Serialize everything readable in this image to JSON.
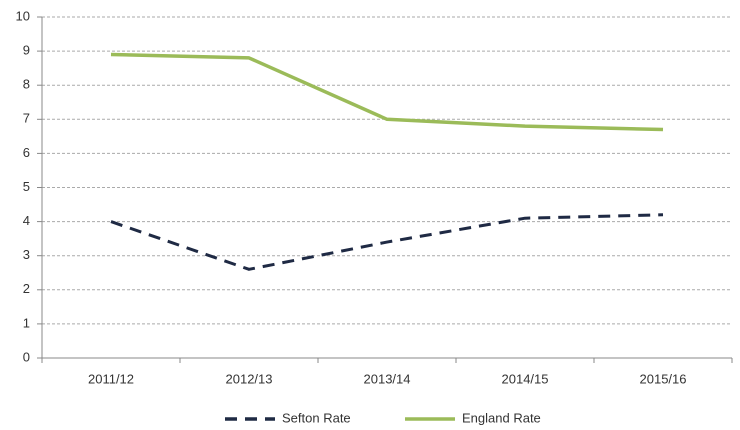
{
  "chart_data": {
    "type": "line",
    "categories": [
      "2011/12",
      "2012/13",
      "2013/14",
      "2014/15",
      "2015/16"
    ],
    "series": [
      {
        "name": "Sefton Rate",
        "color": "#1f2a44",
        "dashed": true,
        "values": [
          4.0,
          2.6,
          3.4,
          4.1,
          4.2
        ]
      },
      {
        "name": "England Rate",
        "color": "#9bbb59",
        "dashed": false,
        "values": [
          8.9,
          8.8,
          7.0,
          6.8,
          6.7
        ]
      }
    ],
    "ylim": [
      0,
      10
    ],
    "yticks": [
      0,
      1,
      2,
      3,
      4,
      5,
      6,
      7,
      8,
      9,
      10
    ],
    "grid": true,
    "legend": "bottom"
  }
}
